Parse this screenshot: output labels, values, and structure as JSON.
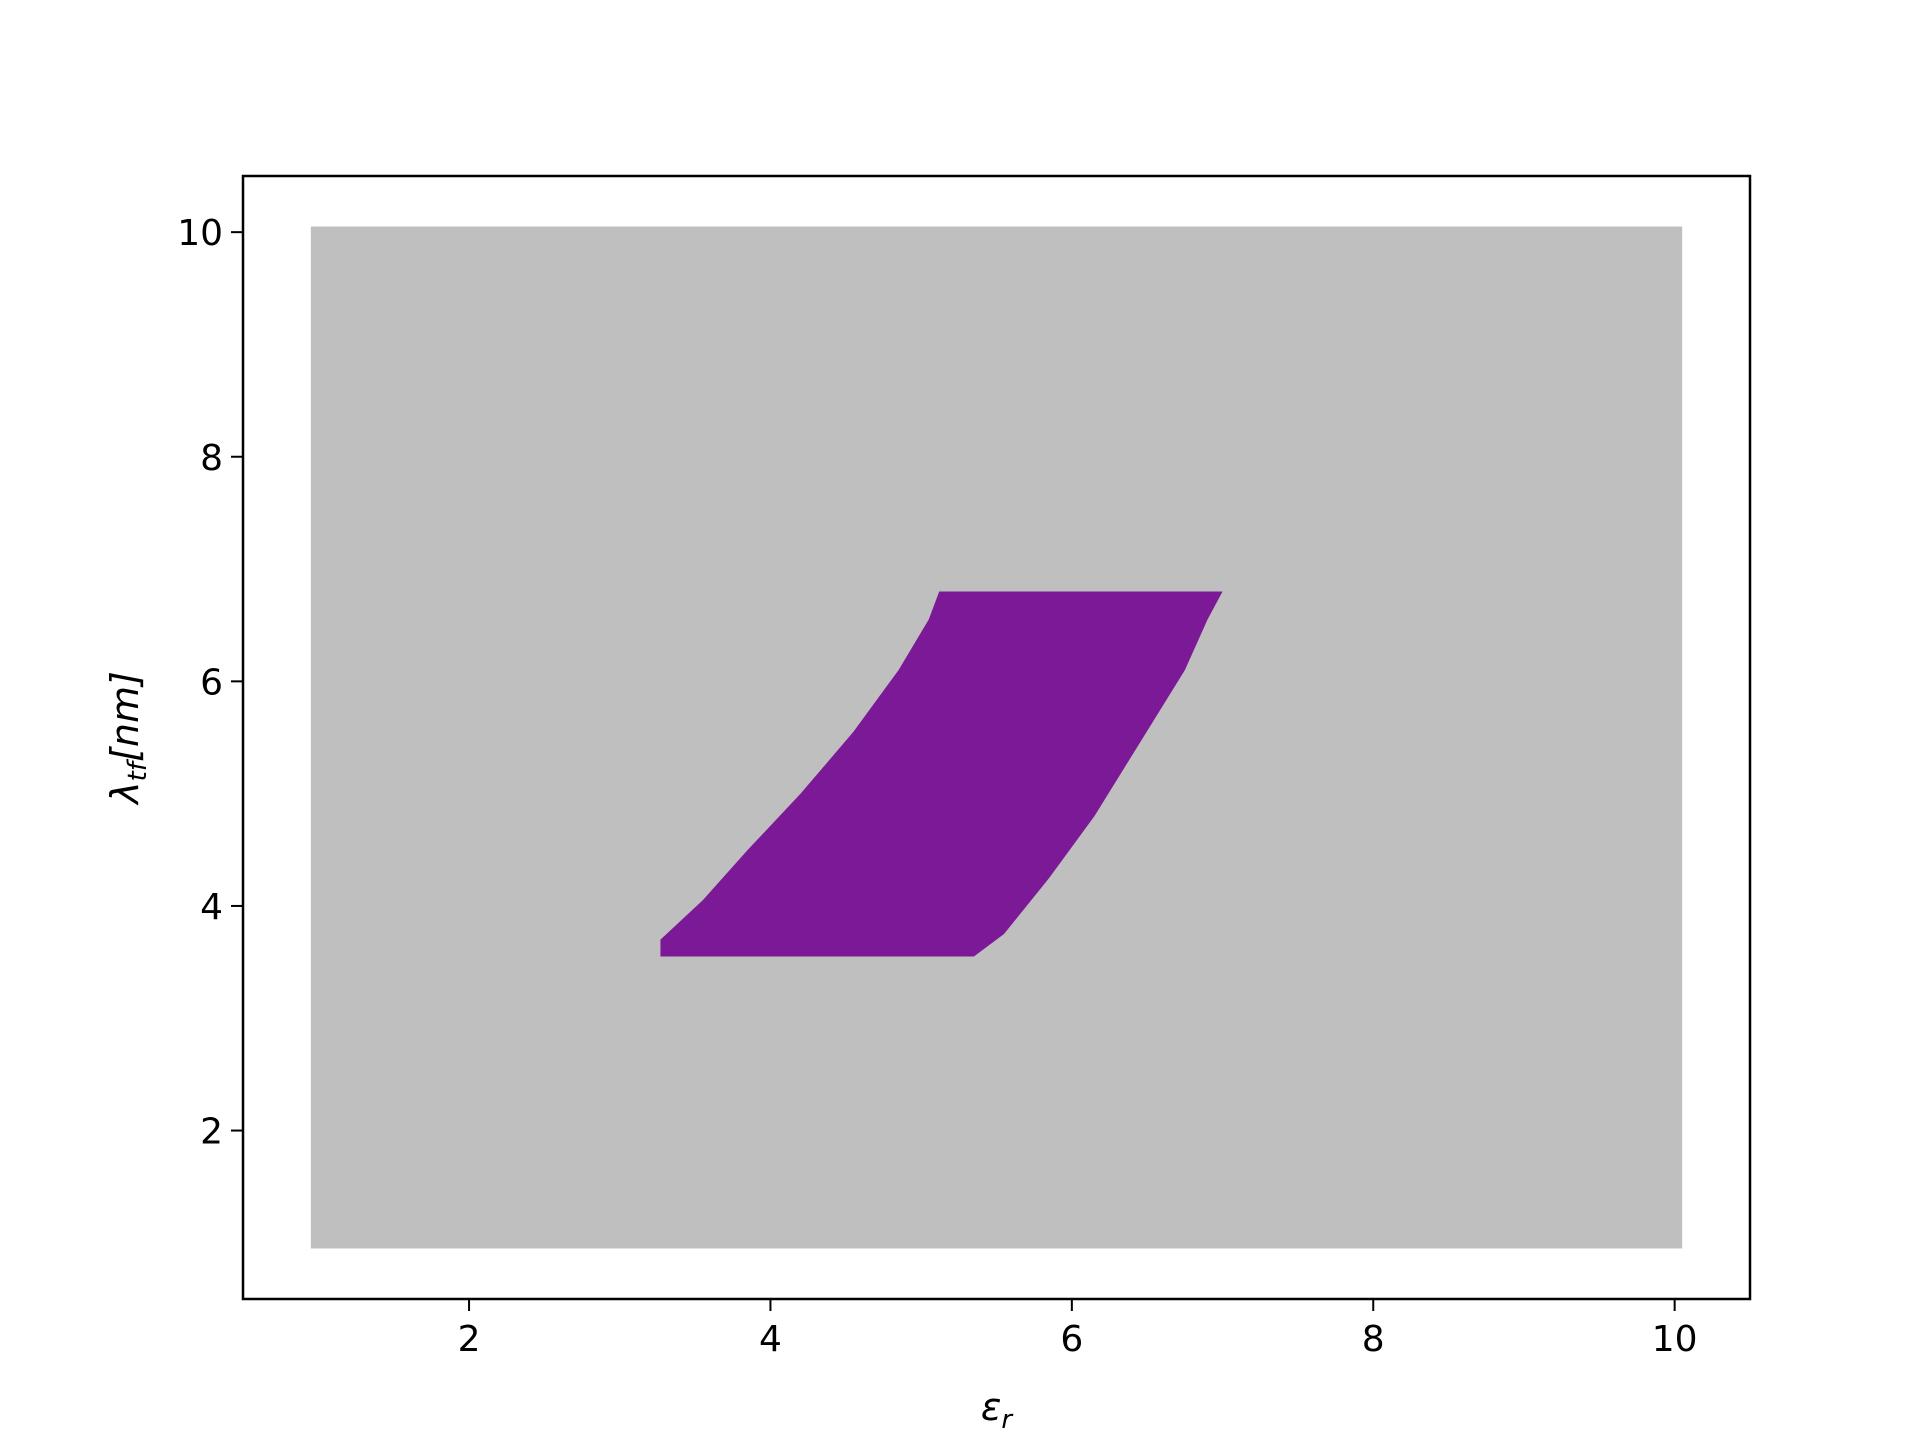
{
  "chart_data": {
    "type": "heatmap",
    "title": "",
    "xlabel": "ε",
    "xlabel_sub": "r",
    "ylabel": "λ",
    "ylabel_sub": "tf",
    "ylabel_suffix": "[nm]",
    "xlim": [
      0.5,
      10.5
    ],
    "ylim": [
      0.5,
      10.5
    ],
    "xticks": [
      2,
      4,
      6,
      8,
      10
    ],
    "yticks": [
      2,
      4,
      6,
      8,
      10
    ],
    "grid": false,
    "background_region": {
      "x": [
        0.95,
        10.05
      ],
      "y": [
        0.95,
        10.05
      ],
      "color": "#bfbfbf"
    },
    "highlight_region": {
      "color": "#7b1996",
      "polygon": [
        [
          3.27,
          3.55
        ],
        [
          5.35,
          3.55
        ],
        [
          5.55,
          3.75
        ],
        [
          5.85,
          4.25
        ],
        [
          6.15,
          4.8
        ],
        [
          6.45,
          5.45
        ],
        [
          6.75,
          6.1
        ],
        [
          6.9,
          6.55
        ],
        [
          7.0,
          6.8
        ],
        [
          5.12,
          6.8
        ],
        [
          5.05,
          6.55
        ],
        [
          4.85,
          6.1
        ],
        [
          4.55,
          5.55
        ],
        [
          4.2,
          5.0
        ],
        [
          3.85,
          4.5
        ],
        [
          3.55,
          4.05
        ],
        [
          3.27,
          3.7
        ]
      ]
    }
  }
}
